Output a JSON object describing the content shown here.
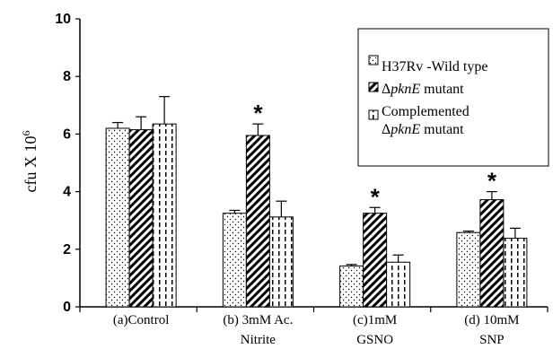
{
  "chart_data": {
    "type": "bar",
    "ylabel": "cfu X 10",
    "ylabel_exponent": "6",
    "ylim": [
      0,
      10
    ],
    "yticks": [
      "0",
      "2",
      "4",
      "6",
      "8",
      "10"
    ],
    "categories": [
      [
        "(a)Control"
      ],
      [
        "(b) 3mM Ac.",
        "Nitrite"
      ],
      [
        "(c)1mM",
        "GSNO"
      ],
      [
        "(d) 10mM",
        "SNP"
      ]
    ],
    "series": [
      {
        "name": "H37Rv -Wild type",
        "pattern": "dots",
        "values": [
          6.2,
          3.25,
          1.42,
          2.58
        ],
        "errors": [
          0.2,
          0.1,
          0.05,
          0.05
        ]
      },
      {
        "name_prefix": "Δ",
        "name_italic": "pknE",
        "name_suffix": " mutant",
        "pattern": "diagonal",
        "values": [
          6.15,
          5.95,
          3.25,
          3.72
        ],
        "errors": [
          0.45,
          0.4,
          0.2,
          0.28
        ]
      },
      {
        "name_line1": "Complemented",
        "name_prefix": "Δ",
        "name_italic": "pknE",
        "name_suffix": " mutant",
        "pattern": "dashes",
        "values": [
          6.35,
          3.12,
          1.55,
          2.38
        ],
        "errors": [
          0.95,
          0.55,
          0.25,
          0.35
        ]
      }
    ],
    "significance": [
      null,
      "*",
      "*",
      "*"
    ],
    "significance_series": 1,
    "grid": false,
    "legend_position": "top-right"
  }
}
